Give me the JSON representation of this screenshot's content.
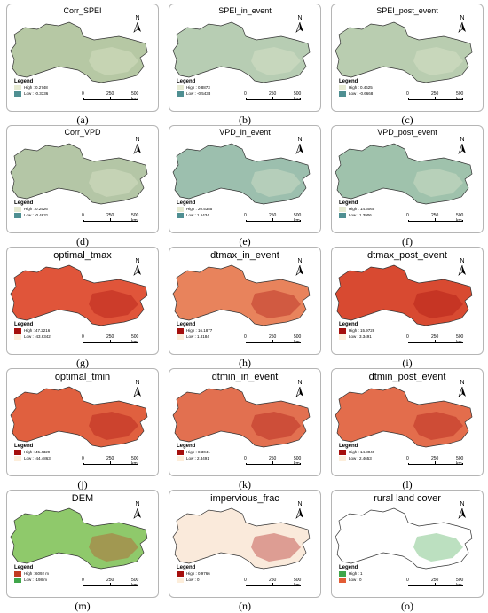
{
  "panels": [
    {
      "title": "Corr_SPEI",
      "caption": "(a)",
      "high": "High : 0.2748",
      "low": "Low : -0.3336",
      "c_high": "#e6ead2",
      "c_low": "#4f8f92",
      "fill": "#b6c8a4",
      "legend": "Legend"
    },
    {
      "title": "SPEI_in_event",
      "caption": "(b)",
      "high": "High : 0.8873",
      "low": "Low : -0.5433",
      "c_high": "#e6ead2",
      "c_low": "#4f8f92",
      "fill": "#b7cdb3",
      "legend": "Legend"
    },
    {
      "title": "SPEI_post_event",
      "caption": "(c)",
      "high": "High : 0.4625",
      "low": "Low : -0.6668",
      "c_high": "#e6ead2",
      "c_low": "#4f8f92",
      "fill": "#b9cdb0",
      "legend": "Legend"
    },
    {
      "title": "Corr_VPD",
      "caption": "(d)",
      "high": "High : 0.2526",
      "low": "Low : -0.4631",
      "c_high": "#e6ead2",
      "c_low": "#4f8f92",
      "fill": "#b4c6a6",
      "legend": "Legend"
    },
    {
      "title": "VPD_in_event",
      "caption": "(e)",
      "high": "High : 20.5385",
      "low": "Low : 1.6434",
      "c_high": "#e6ead2",
      "c_low": "#4f8f92",
      "fill": "#9cbfae",
      "legend": "Legend"
    },
    {
      "title": "VPD_post_event",
      "caption": "(f)",
      "high": "High : 14.6065",
      "low": "Low : 1.3906",
      "c_high": "#e6ead2",
      "c_low": "#4f8f92",
      "fill": "#9fc2ac",
      "legend": "Legend"
    },
    {
      "title": "optimal_tmax",
      "caption": "(g)",
      "high": "High : 47.2216",
      "low": "Low : -43.6342",
      "c_high": "#a50f0d",
      "c_low": "#fdeedb",
      "fill": "#e0553a",
      "legend": "Legend"
    },
    {
      "title": "dtmax_in_event",
      "caption": "(h)",
      "high": "High : 16.1877",
      "low": "Low : 1.8184",
      "c_high": "#a50f0d",
      "c_low": "#fdeedb",
      "fill": "#e8835c",
      "legend": "Legend"
    },
    {
      "title": "dtmax_post_event",
      "caption": "(i)",
      "high": "High : 15.9728",
      "low": "Low : 3.3491",
      "c_high": "#a50f0d",
      "c_low": "#fdeedb",
      "fill": "#d84a31",
      "legend": "Legend"
    },
    {
      "title": "optimal_tmin",
      "caption": "(j)",
      "high": "High : 45.4329",
      "low": "Low : -44.4863",
      "c_high": "#a50f0d",
      "c_low": "#fdeedb",
      "fill": "#e0603f",
      "legend": "Legend"
    },
    {
      "title": "dtmin_in_event",
      "caption": "(k)",
      "high": "High : 8.3041",
      "low": "Low : 2.3491",
      "c_high": "#a50f0d",
      "c_low": "#fdeedb",
      "fill": "#e27050",
      "legend": "Legend"
    },
    {
      "title": "dtmin_post_event",
      "caption": "(l)",
      "high": "High : 14.8049",
      "low": "Low : 2.4653",
      "c_high": "#a50f0d",
      "c_low": "#fdeedb",
      "fill": "#e36d4c",
      "legend": "Legend"
    },
    {
      "title": "DEM",
      "caption": "(m)",
      "high": "High : 6092 m",
      "low": "Low : -198 m",
      "c_high": "#c23b22",
      "c_low": "#3fa64a",
      "fill": "#8fc96b",
      "legend": "Legend"
    },
    {
      "title": "impervious_frac",
      "caption": "(n)",
      "high": "High : 0.9766",
      "low": "Low : 0",
      "c_high": "#a50f0d",
      "c_low": "#fdeedb",
      "fill": "#faeadb",
      "legend": "Legend"
    },
    {
      "title": "rural land cover",
      "caption": "(o)",
      "high": "High : 1",
      "low": "Low : 0",
      "c_high": "#3fa64a",
      "c_low": "#e35c34",
      "fill": "#ffffff",
      "legend": "Legend"
    }
  ],
  "scale_labels": {
    "zero": "0",
    "mid": "250",
    "max": "500 km"
  },
  "north_label": "N"
}
